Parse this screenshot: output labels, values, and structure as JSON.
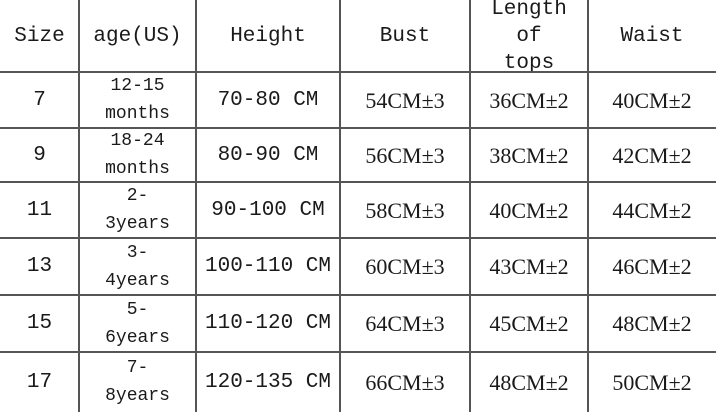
{
  "table": {
    "headers": [
      "Size",
      "age(US)",
      "Height",
      "Bust",
      "Length of tops",
      "Waist"
    ],
    "rows": [
      [
        "7",
        "12-15 months",
        "70-80 CM",
        "54CM±3",
        "36CM±2",
        "40CM±2"
      ],
      [
        "9",
        "18-24 months",
        "80-90 CM",
        "56CM±3",
        "38CM±2",
        "42CM±2"
      ],
      [
        "11",
        "2-3years",
        "90-100 CM",
        "58CM±3",
        "40CM±2",
        "44CM±2"
      ],
      [
        "13",
        "3-4years",
        "100-110 CM",
        "60CM±3",
        "43CM±2",
        "46CM±2"
      ],
      [
        "15",
        "5-6years",
        "110-120 CM",
        "64CM±3",
        "45CM±2",
        "48CM±2"
      ],
      [
        "17",
        "7-8years",
        "120-135 CM",
        "66CM±3",
        "48CM±2",
        "50CM±2"
      ]
    ]
  }
}
